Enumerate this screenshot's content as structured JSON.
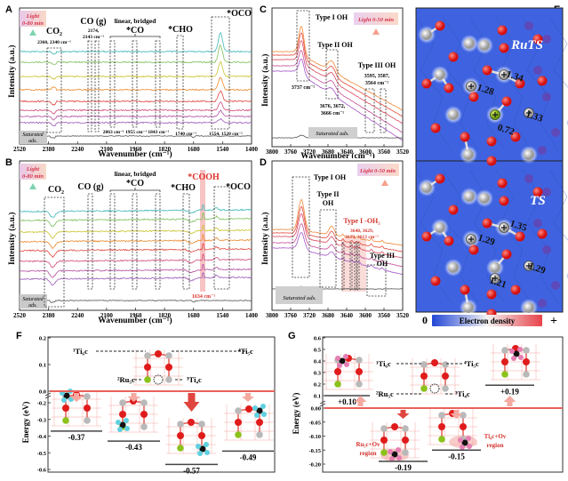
{
  "chart_data": [
    {
      "id": "A",
      "type": "line",
      "panel_label": "A",
      "xlabel": "Wavenumber (cm⁻¹)",
      "ylabel": "Intensity (a.u.)",
      "xlim": [
        2520,
        1400
      ],
      "xticks": [
        2520,
        2380,
        2240,
        2100,
        1960,
        1820,
        1680,
        1540,
        1400
      ],
      "series_count": 8,
      "series_colors": [
        "#9b59b6",
        "#b44fa3",
        "#d04a7c",
        "#e0463f",
        "#ec8a2c",
        "#c9c22b",
        "#7cbf5a",
        "#3fb7b8"
      ],
      "baseline_label": "Saturated ads.",
      "light_label": "Light 0-80 min",
      "annotations": [
        {
          "text": "CO₂",
          "sub": "2360, 2340 cm⁻¹",
          "x": 2360
        },
        {
          "text": "CO (g)",
          "sub": "2174, 2143 cm⁻¹",
          "x": 2160
        },
        {
          "text": "linear, bridged *CO",
          "sub": "2063 cm⁻¹ 1955 cm⁻¹ 1843 cm⁻¹",
          "x": 1955
        },
        {
          "text": "*CHO",
          "sub": "1740 cm⁻¹",
          "x": 1740
        },
        {
          "text": "*OCO",
          "sub": "1554, 1520 cm⁻¹",
          "x": 1540
        }
      ]
    },
    {
      "id": "B",
      "type": "line",
      "panel_label": "B",
      "xlabel": "Wavenumber (cm⁻¹)",
      "ylabel": "Intensity (a.u.)",
      "xlim": [
        2520,
        1400
      ],
      "xticks": [
        2520,
        2380,
        2240,
        2100,
        1960,
        1820,
        1680,
        1540,
        1400
      ],
      "series_count": 8,
      "series_colors": [
        "#9b59b6",
        "#b44fa3",
        "#d04a7c",
        "#e0463f",
        "#ec8a2c",
        "#c9c22b",
        "#7cbf5a",
        "#3fb7b8"
      ],
      "baseline_label": "Saturated ads.",
      "light_label": "Light 0-80 min",
      "annotations": [
        {
          "text": "CO₂",
          "x": 2360
        },
        {
          "text": "CO (g)",
          "x": 2160
        },
        {
          "text": "linear, bridged *CO",
          "x": 1955
        },
        {
          "text": "*CHO",
          "x": 1740
        },
        {
          "text": "*COOH",
          "sub": "1634 cm⁻¹",
          "x": 1634,
          "highlight": true
        },
        {
          "text": "*OCO",
          "x": 1540
        }
      ]
    },
    {
      "id": "C",
      "type": "line",
      "panel_label": "C",
      "xlabel": "Wavenumber (cm⁻¹)",
      "ylabel": "Intensity (a.u.)",
      "xlim": [
        3800,
        3520
      ],
      "xticks": [
        3800,
        3760,
        3720,
        3680,
        3640,
        3600,
        3560,
        3520
      ],
      "series_count": 5,
      "series_colors": [
        "#a557c9",
        "#c44f96",
        "#d9485f",
        "#e3483a",
        "#ee8a3a"
      ],
      "baseline_label": "Saturated ads.",
      "light_label": "Light 0-50 min",
      "annotations": [
        {
          "text": "Type I OH",
          "sub": "3737 cm⁻¹",
          "x": 3737
        },
        {
          "text": "Type II OH",
          "sub": "3676, 3672, 3666 cm⁻¹",
          "x": 3672
        },
        {
          "text": "Type III OH",
          "sub": "3595, 3587, 3564 cm⁻¹",
          "x": 3580
        }
      ]
    },
    {
      "id": "D",
      "type": "line",
      "panel_label": "D",
      "xlabel": "Wavenumber (cm⁻¹)",
      "ylabel": "Intensity (a.u.)",
      "xlim": [
        3800,
        3520
      ],
      "xticks": [
        3800,
        3760,
        3720,
        3680,
        3640,
        3600,
        3560,
        3520
      ],
      "series_count": 5,
      "series_colors": [
        "#a557c9",
        "#c44f96",
        "#d9485f",
        "#e3483a",
        "#ee8a3a"
      ],
      "baseline_label": "Saturated ads.",
      "light_label": "Light 0-50 min",
      "annotations": [
        {
          "text": "Type I OH",
          "x": 3737
        },
        {
          "text": "Type II OH",
          "x": 3672
        },
        {
          "text": "Type I -OH₂",
          "sub": "3648, 3629, 3619, 3613 cm⁻¹",
          "x": 3630,
          "highlight": true
        },
        {
          "text": "Type III OH",
          "x": 3580
        }
      ]
    },
    {
      "id": "E",
      "type": "heatmap",
      "panel_label": "E",
      "subpanels": [
        {
          "title": "RuTS",
          "bond_labels": [
            "1.34",
            "1.28",
            "1.33",
            "0.72"
          ]
        },
        {
          "title": "TS",
          "bond_labels": [
            "1.35",
            "1.29",
            "1.29",
            "1.21"
          ]
        }
      ],
      "colorbar": {
        "min_label": "0",
        "label": "Electron density",
        "max_label": "+"
      }
    },
    {
      "id": "F",
      "type": "bar",
      "panel_label": "F",
      "ylabel": "Energy (eV)",
      "ylim": [
        -0.6,
        0.2
      ],
      "yticks": [
        "0.2",
        "0.1",
        "0.0",
        "-0.2",
        "-0.3",
        "-0.4",
        "-0.5",
        "-0.6"
      ],
      "site_labels": [
        "¹Ti₆c",
        "⁴Ti₅c",
        "²Ru₅c",
        "³Ti₄c",
        "Oᵥ"
      ],
      "values": [
        -0.37,
        -0.43,
        -0.57,
        -0.49
      ],
      "value_labels": [
        "-0.37",
        "-0.43",
        "-0.57",
        "-0.49"
      ]
    },
    {
      "id": "G",
      "type": "bar",
      "panel_label": "G",
      "ylabel": "Energy (eV)",
      "ylim": [
        -0.2,
        0.6
      ],
      "yticks": [
        "0.6",
        "0.5",
        "0.4",
        "0.3",
        "0.2",
        "0.1",
        "0.00",
        "-0.05",
        "-0.10",
        "-0.15",
        "-0.20"
      ],
      "site_labels": [
        "¹Ti₆c",
        "⁴Ti₅c",
        "²Ru₅c",
        "³Ti₄c",
        "Oᵥ"
      ],
      "values": [
        0.1,
        -0.19,
        -0.15,
        0.19
      ],
      "value_labels": [
        "+0.10",
        "-0.19",
        "-0.15",
        "+0.19"
      ],
      "region_labels": [
        "Ru₅c+Ov region",
        "Ti₄c+Ov region"
      ]
    }
  ],
  "labels": {
    "A": "A",
    "B": "B",
    "C": "C",
    "D": "D",
    "E": "E",
    "F": "F",
    "G": "G",
    "wavenumber": "Wavenumber (cm⁻¹)",
    "intensity": "Intensity (a.u.)",
    "energy": "Energy (eV)",
    "saturated": "Saturated ads.",
    "saturated_l1": "Saturated",
    "saturated_l2": "ads.",
    "light80_l1": "Light",
    "light80_l2": "0-80 min",
    "light50": "Light 0-50 min",
    "co2": "CO₂",
    "co2_sub": "2360, 2340 cm⁻¹",
    "cog": "CO (g)",
    "cog_sub1": "2174,",
    "cog_sub2": "2143 cm⁻¹",
    "linear": "linear, bridged",
    "co": "*CO",
    "co_subs": "2063 cm⁻¹  1955 cm⁻¹  1843 cm⁻¹",
    "cho": "*CHO",
    "cho_sub": "1740 cm⁻¹",
    "oco": "*OCO",
    "oco_sub": "1554, 1520 cm⁻¹",
    "cooh": "*COOH",
    "cooh_sub": "1634 cm⁻¹",
    "type1": "Type I OH",
    "type1_sub": "3737 cm⁻¹",
    "type2": "Type II OH",
    "type2_l1": "Type II",
    "type2_l2": "OH",
    "type2_sub1": "3676, 3672,",
    "type2_sub2": "3666 cm⁻¹",
    "type3": "Type III OH",
    "type3_l1": "Type III",
    "type3_l2": "OH",
    "type3_sub1": "3595, 3587,",
    "type3_sub2": "3564 cm⁻¹",
    "typeoh2": "Type I -OH₂",
    "typeoh2_sub1": "3648, 3629,",
    "typeoh2_sub2": "3619, 3613 cm⁻¹",
    "ruts": "RuTS",
    "ts": "TS",
    "cb_min": "0",
    "cb_label": "Electron density",
    "cb_max": "+",
    "ti6c": "¹Ti₆c",
    "ti5c": "⁴Ti₅c",
    "ru5c": "²Ru₅c",
    "ti4c": "³Ti₄c",
    "ov": "Oᵥ",
    "ru_region1": "Ru₅c+Ov",
    "ru_region2": "region",
    "ti_region1": "Ti₄c+Ov",
    "ti_region2": "region"
  }
}
